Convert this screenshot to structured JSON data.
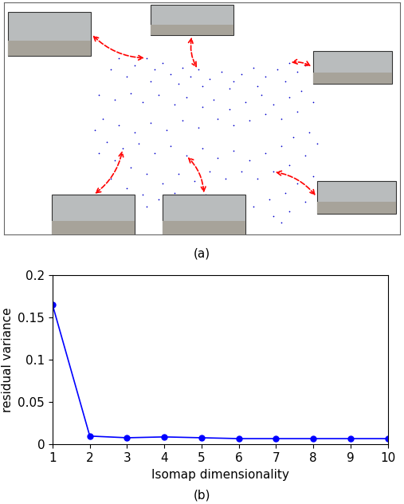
{
  "chart_data": [
    {
      "type": "scatter",
      "caption": "(a)",
      "tick_labels": false,
      "color": "#0000cc",
      "marker": "dot",
      "xlim": [
        0,
        100
      ],
      "ylim": [
        0,
        100
      ],
      "x": [
        29,
        33,
        36,
        38,
        40,
        42,
        45,
        47,
        49,
        52,
        55,
        58,
        60,
        63,
        66,
        69,
        72,
        74,
        76,
        71,
        64,
        57,
        50,
        44,
        37,
        31,
        27,
        24,
        28,
        32,
        35,
        39,
        43,
        46,
        50,
        53,
        57,
        61,
        65,
        68,
        72,
        75,
        78,
        74,
        70,
        66,
        62,
        58,
        54,
        49,
        45,
        41,
        37,
        33,
        29,
        25,
        23,
        26,
        30,
        34,
        38,
        42,
        46,
        50,
        54,
        58,
        62,
        66,
        70,
        73,
        77,
        79,
        76,
        72,
        68,
        64,
        60,
        56,
        52,
        48,
        44,
        40,
        36,
        32,
        28,
        24,
        27,
        31,
        35,
        39,
        43,
        47,
        51,
        55,
        59,
        63,
        67,
        71,
        74,
        78,
        72,
        68,
        60,
        52,
        44,
        36,
        76,
        70
      ],
      "values": [
        76,
        73,
        76,
        71,
        74,
        69,
        72,
        68,
        71,
        67,
        70,
        66,
        69,
        72,
        68,
        71,
        74,
        70,
        73,
        66,
        64,
        63,
        64,
        65,
        66,
        68,
        71,
        60,
        58,
        61,
        57,
        60,
        56,
        59,
        55,
        58,
        54,
        57,
        60,
        56,
        59,
        62,
        57,
        53,
        50,
        52,
        49,
        47,
        50,
        46,
        49,
        45,
        48,
        44,
        47,
        50,
        45,
        40,
        37,
        39,
        35,
        38,
        34,
        37,
        33,
        36,
        32,
        35,
        38,
        42,
        44,
        39,
        34,
        30,
        27,
        24,
        27,
        24,
        27,
        23,
        26,
        22,
        26,
        29,
        32,
        35,
        24,
        20,
        17,
        15,
        18,
        14,
        17,
        13,
        16,
        12,
        15,
        18,
        22,
        25,
        10,
        8,
        9,
        10,
        11,
        12,
        14,
        5
      ]
    },
    {
      "type": "line",
      "caption": "(b)",
      "color": "#0000ff",
      "marker": "circle",
      "grid": false,
      "x_label": "Isomap dimensionality",
      "y_label": "residual variance",
      "x": [
        1,
        2,
        3,
        4,
        5,
        6,
        7,
        8,
        9,
        10
      ],
      "values": [
        0.165,
        0.01,
        0.008,
        0.009,
        0.008,
        0.007,
        0.007,
        0.007,
        0.007,
        0.007
      ],
      "xlim": [
        1,
        10
      ],
      "xticks": [
        1,
        2,
        3,
        4,
        5,
        6,
        7,
        8,
        9,
        10
      ],
      "ylim": [
        0,
        0.2
      ],
      "yticks": [
        0,
        0.05,
        0.1,
        0.15,
        0.2
      ]
    }
  ]
}
